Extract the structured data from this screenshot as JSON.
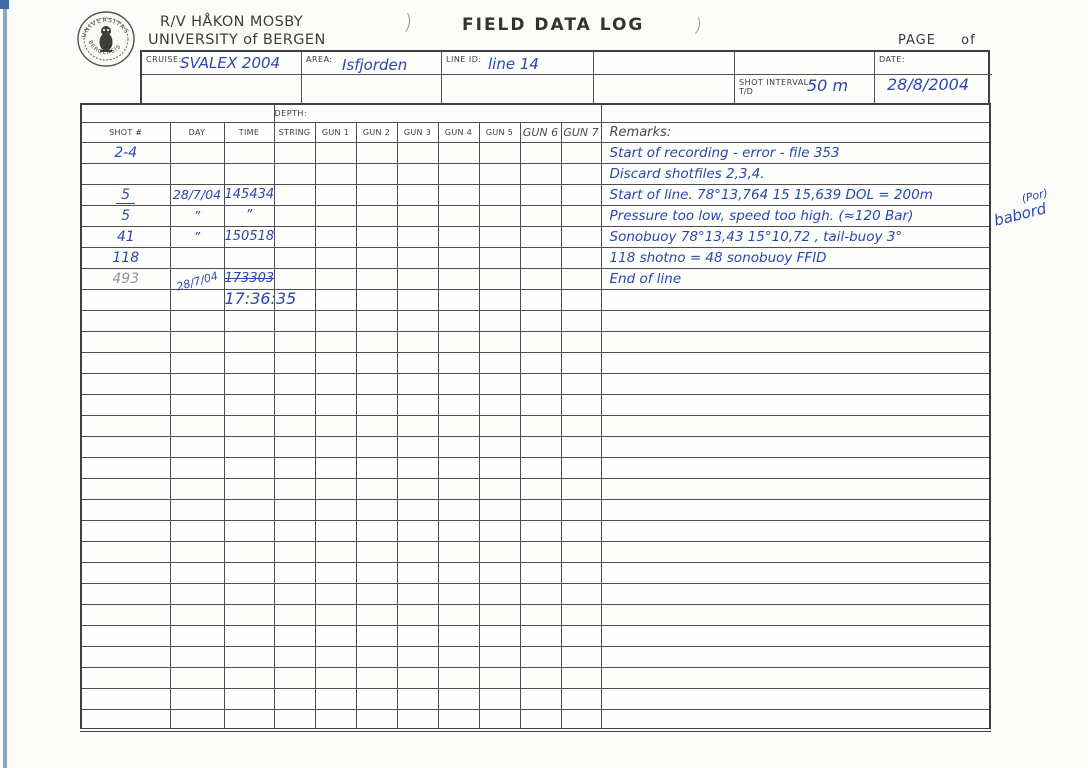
{
  "page": {
    "org_line1": "R/V HÅKON MOSBY",
    "org_line2": "UNIVERSITY of BERGEN",
    "title": "FIELD DATA LOG",
    "page_label": "PAGE",
    "page_of": "of",
    "logo_text_top": "UNIVERSITAS",
    "logo_text_bottom": "BERGENSIS"
  },
  "scan_marks": [
    ")",
    ")"
  ],
  "form": {
    "cruise_label": "CRUISE:",
    "cruise_value": "SVALEX 2004",
    "area_label": "AREA:",
    "area_value": "Isfjorden",
    "line_id_label": "LINE ID:",
    "line_id_value": "line 14",
    "shot_interval_label": "SHOT INTERVAL",
    "shot_interval_sub": "T/D",
    "shot_interval_value": "50 m",
    "date_label": "DATE:",
    "date_value": "28/8/2004"
  },
  "table": {
    "depth_header": "DEPTH:",
    "columns": [
      "SHOT #",
      "DAY",
      "TIME",
      "STRING",
      "GUN 1",
      "GUN 2",
      "GUN 3",
      "GUN 4",
      "GUN 5"
    ],
    "hw_columns": [
      "GUN 6",
      "GUN 7"
    ],
    "remarks_header": "Remarks:",
    "total_rows": 28,
    "rows": [
      {
        "shot": "2-4",
        "remark": "Start of recording - error -  file 353"
      },
      {
        "remark": "Discard shotfiles  2,3,4."
      },
      {
        "shot": "5",
        "shot_underline": true,
        "day": "28/7/04",
        "time": "145434",
        "remark": "Start of line.  78°13,764   15 15,639  DOL = 200m"
      },
      {
        "shot": "5",
        "day": "”",
        "time": "”",
        "remark": "Pressure too low, speed too high. (≈120 Bar)"
      },
      {
        "shot": "41",
        "day": "”",
        "time": "150518",
        "remark": "Sonobuoy 78°13,43    15°10,72 , tail-buoy 3°"
      },
      {
        "shot": "118",
        "remark": "118 shotno =  48 sonobuoy FFID"
      },
      {
        "shot": "493",
        "shot_pencil": true,
        "day": "28/7/04",
        "day_diagonal": true,
        "time": "173303",
        "time_strike": true,
        "remark": "End of line"
      },
      {
        "time": "17:36:35",
        "time_large": true
      }
    ]
  },
  "margin_note": {
    "line1": "(Por)",
    "line2": "babord"
  },
  "colors": {
    "ink": "#2947ae",
    "print": "#3a3a3a",
    "grid_line": "#4f4f4f"
  }
}
